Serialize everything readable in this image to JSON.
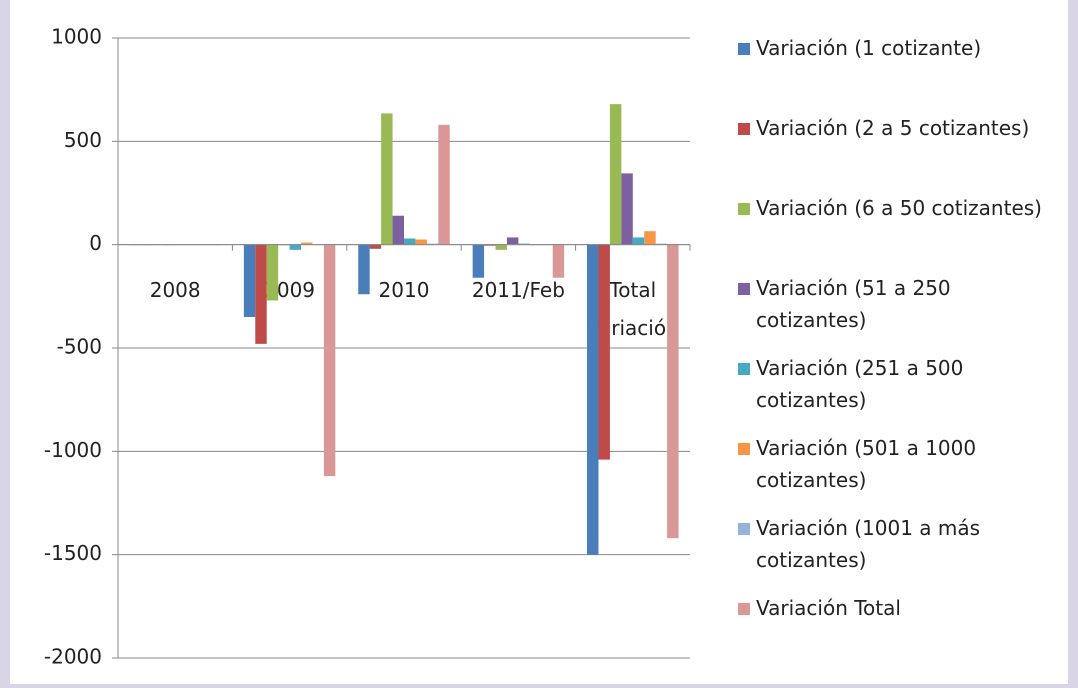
{
  "chart_data": {
    "type": "bar",
    "categories": [
      "2008",
      "2009",
      "2010",
      "2011/Feb",
      "Total Variación"
    ],
    "series": [
      {
        "name": "Variación (1 cotizante)",
        "color": "#4a7ebb",
        "values": [
          0,
          -350,
          -240,
          -160,
          -1500
        ]
      },
      {
        "name": "Variación (2 a 5 cotizantes)",
        "color": "#be4b48",
        "values": [
          0,
          -480,
          -20,
          -5,
          -1040
        ]
      },
      {
        "name": "Variación (6 a 50 cotizantes)",
        "color": "#98b954",
        "values": [
          0,
          -270,
          635,
          -25,
          680
        ]
      },
      {
        "name": "Variación (51 a 250 cotizantes)",
        "color": "#7d60a0",
        "values": [
          0,
          0,
          140,
          35,
          345
        ]
      },
      {
        "name": "Variación (251 a 500 cotizantes)",
        "color": "#46aac5",
        "values": [
          0,
          -25,
          30,
          5,
          35
        ]
      },
      {
        "name": "Variación (501 a 1000 cotizantes)",
        "color": "#f79646",
        "values": [
          0,
          10,
          25,
          0,
          65
        ]
      },
      {
        "name": "Variación (1001 a más cotizantes)",
        "color": "#95b3d7",
        "values": [
          0,
          0,
          5,
          0,
          5
        ]
      },
      {
        "name": "Variación Total",
        "color": "#d99795",
        "values": [
          0,
          -1120,
          580,
          -160,
          -1420
        ]
      }
    ],
    "ylim": [
      -2000,
      1000
    ],
    "yticks": [
      1000,
      500,
      0,
      -500,
      -1000,
      -1500,
      -2000
    ],
    "grid": true,
    "legend": "right"
  }
}
